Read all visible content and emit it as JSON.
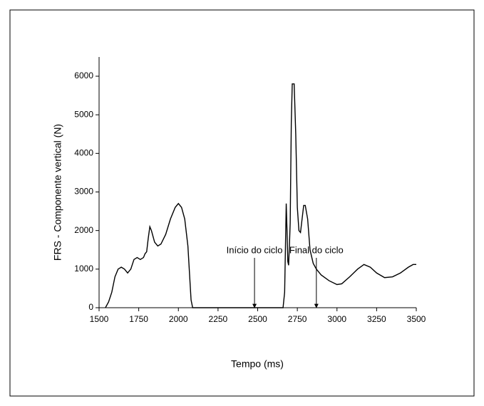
{
  "chart_data": {
    "type": "line",
    "xlabel": "Tempo (ms)",
    "ylabel": "FRS - Componente vertical (N)",
    "x": [
      1540,
      1560,
      1580,
      1600,
      1620,
      1640,
      1660,
      1680,
      1700,
      1720,
      1740,
      1760,
      1780,
      1790,
      1800,
      1810,
      1820,
      1830,
      1850,
      1870,
      1890,
      1920,
      1950,
      1980,
      2000,
      2020,
      2040,
      2060,
      2070,
      2080,
      2090,
      2500,
      2660,
      2670,
      2680,
      2685,
      2690,
      2695,
      2700,
      2705,
      2712,
      2718,
      2730,
      2740,
      2750,
      2760,
      2770,
      2780,
      2790,
      2800,
      2815,
      2830,
      2850,
      2870,
      2900,
      2950,
      3000,
      3030,
      3080,
      3130,
      3170,
      3210,
      3250,
      3300,
      3350,
      3400,
      3450,
      3480,
      3500
    ],
    "values": [
      0,
      150,
      400,
      800,
      1000,
      1050,
      1000,
      900,
      1000,
      1250,
      1300,
      1250,
      1300,
      1400,
      1450,
      1800,
      2100,
      2000,
      1700,
      1600,
      1650,
      1900,
      2300,
      2600,
      2700,
      2600,
      2300,
      1600,
      900,
      200,
      0,
      0,
      0,
      400,
      2700,
      2000,
      1200,
      1100,
      1600,
      2200,
      4800,
      5800,
      5800,
      4500,
      2600,
      2000,
      1950,
      2300,
      2650,
      2650,
      2300,
      1500,
      1150,
      1000,
      850,
      700,
      600,
      620,
      800,
      1000,
      1120,
      1050,
      900,
      780,
      800,
      900,
      1050,
      1120,
      1120
    ],
    "color": "#000000",
    "xlim": [
      1500,
      3500
    ],
    "xticks": [
      1500,
      1750,
      2000,
      2250,
      2500,
      2750,
      3000,
      3250,
      3500
    ],
    "ylim": [
      0,
      6000
    ],
    "yticks": [
      0,
      1000,
      2000,
      3000,
      4000,
      5000,
      6000
    ],
    "grid": false,
    "annotations": [
      {
        "text": "Início do ciclo",
        "x": 2480
      },
      {
        "text": "Final do ciclo",
        "x": 2870
      }
    ]
  }
}
